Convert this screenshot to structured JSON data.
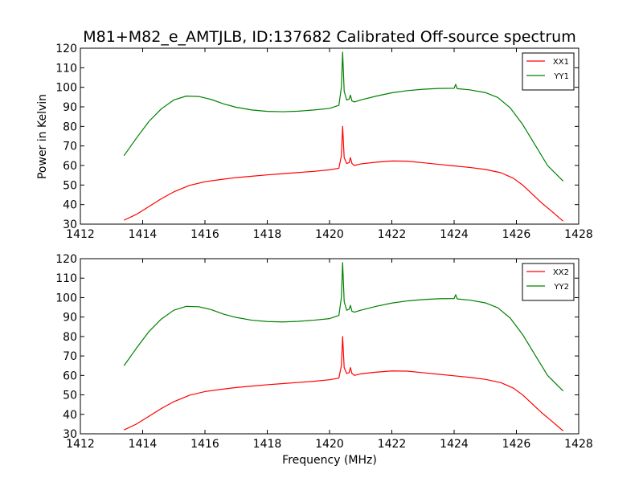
{
  "figure": {
    "title": "M81+M82_e_AMTJLB, ID:137682 Calibrated Off-source spectrum",
    "xlabel": "Frequency (MHz)",
    "ylabel": "Power in Kelvin"
  },
  "chart_data": [
    {
      "type": "line",
      "title": "M81+M82_e_AMTJLB, ID:137682 Calibrated Off-source spectrum",
      "xlabel": "",
      "ylabel": "Power in Kelvin",
      "xlim": [
        1412,
        1428
      ],
      "ylim": [
        30,
        120
      ],
      "xticks": [
        1412,
        1414,
        1416,
        1418,
        1420,
        1422,
        1424,
        1426,
        1428
      ],
      "yticks": [
        30,
        40,
        50,
        60,
        70,
        80,
        90,
        100,
        110,
        120
      ],
      "grid": false,
      "legend_position": "top-right",
      "series": [
        {
          "name": "XX1",
          "color": "#ff0000",
          "x": [
            1413.4,
            1413.8,
            1414.2,
            1414.6,
            1415.0,
            1415.5,
            1416.0,
            1416.5,
            1417.0,
            1417.5,
            1418.0,
            1418.5,
            1419.0,
            1419.5,
            1420.0,
            1420.3,
            1420.38,
            1420.42,
            1420.47,
            1420.55,
            1420.63,
            1420.67,
            1420.72,
            1420.8,
            1421.0,
            1421.5,
            1422.0,
            1422.5,
            1423.0,
            1423.5,
            1424.0,
            1424.5,
            1425.0,
            1425.5,
            1425.9,
            1426.2,
            1426.5,
            1426.8,
            1427.1,
            1427.5
          ],
          "y": [
            32,
            35,
            39,
            43,
            46.5,
            49.8,
            51.7,
            52.8,
            53.8,
            54.5,
            55.2,
            55.8,
            56.4,
            57.0,
            57.8,
            58.6,
            65,
            80,
            64,
            61,
            61.5,
            64,
            61,
            60,
            60.8,
            61.7,
            62.3,
            62.2,
            61.4,
            60.6,
            59.8,
            59.0,
            58.0,
            56.3,
            53.5,
            50,
            45.5,
            41,
            37,
            31.5
          ]
        },
        {
          "name": "YY1",
          "color": "#008000",
          "x": [
            1413.4,
            1413.8,
            1414.2,
            1414.6,
            1415.0,
            1415.4,
            1415.8,
            1416.2,
            1416.6,
            1417.0,
            1417.5,
            1418.0,
            1418.5,
            1419.0,
            1419.5,
            1420.0,
            1420.3,
            1420.38,
            1420.42,
            1420.47,
            1420.55,
            1420.63,
            1420.67,
            1420.72,
            1420.8,
            1421.0,
            1421.5,
            1422.0,
            1422.5,
            1423.0,
            1423.5,
            1424.0,
            1424.05,
            1424.1,
            1424.5,
            1425.0,
            1425.4,
            1425.8,
            1426.2,
            1426.6,
            1427.0,
            1427.5
          ],
          "y": [
            65,
            74,
            82.5,
            89,
            93.5,
            95.5,
            95.3,
            93.8,
            91.5,
            89.8,
            88.4,
            87.7,
            87.5,
            87.8,
            88.4,
            89.2,
            90.8,
            100,
            118,
            98,
            93.5,
            94,
            96,
            93,
            92.5,
            93.5,
            95.5,
            97.2,
            98.3,
            99.0,
            99.4,
            99.5,
            101.5,
            99.3,
            98.7,
            97.3,
            94.8,
            89.5,
            81,
            70.5,
            60,
            52
          ]
        }
      ]
    },
    {
      "type": "line",
      "title": "",
      "xlabel": "Frequency (MHz)",
      "ylabel": "",
      "xlim": [
        1412,
        1428
      ],
      "ylim": [
        30,
        120
      ],
      "xticks": [
        1412,
        1414,
        1416,
        1418,
        1420,
        1422,
        1424,
        1426,
        1428
      ],
      "yticks": [
        30,
        40,
        50,
        60,
        70,
        80,
        90,
        100,
        110,
        120
      ],
      "grid": false,
      "legend_position": "top-right",
      "series": [
        {
          "name": "XX2",
          "color": "#ff0000",
          "x": [
            1413.4,
            1413.8,
            1414.2,
            1414.6,
            1415.0,
            1415.5,
            1416.0,
            1416.5,
            1417.0,
            1417.5,
            1418.0,
            1418.5,
            1419.0,
            1419.5,
            1420.0,
            1420.3,
            1420.38,
            1420.42,
            1420.47,
            1420.55,
            1420.63,
            1420.67,
            1420.72,
            1420.8,
            1421.0,
            1421.5,
            1422.0,
            1422.5,
            1423.0,
            1423.5,
            1424.0,
            1424.5,
            1425.0,
            1425.5,
            1425.9,
            1426.2,
            1426.5,
            1426.8,
            1427.1,
            1427.5
          ],
          "y": [
            32,
            35,
            39,
            43,
            46.5,
            49.8,
            51.7,
            52.8,
            53.8,
            54.5,
            55.2,
            55.8,
            56.4,
            57.0,
            57.8,
            58.6,
            65,
            80,
            64,
            61,
            61.5,
            64,
            61,
            60,
            60.8,
            61.7,
            62.3,
            62.2,
            61.4,
            60.6,
            59.8,
            59.0,
            58.0,
            56.3,
            53.5,
            50,
            45.5,
            41,
            37,
            31.5
          ]
        },
        {
          "name": "YY2",
          "color": "#008000",
          "x": [
            1413.4,
            1413.8,
            1414.2,
            1414.6,
            1415.0,
            1415.4,
            1415.8,
            1416.2,
            1416.6,
            1417.0,
            1417.5,
            1418.0,
            1418.5,
            1419.0,
            1419.5,
            1420.0,
            1420.3,
            1420.38,
            1420.42,
            1420.47,
            1420.55,
            1420.63,
            1420.67,
            1420.72,
            1420.8,
            1421.0,
            1421.5,
            1422.0,
            1422.5,
            1423.0,
            1423.5,
            1424.0,
            1424.05,
            1424.1,
            1424.5,
            1425.0,
            1425.4,
            1425.8,
            1426.2,
            1426.6,
            1427.0,
            1427.5
          ],
          "y": [
            65,
            74,
            82.5,
            89,
            93.5,
            95.5,
            95.3,
            93.8,
            91.5,
            89.8,
            88.4,
            87.7,
            87.5,
            87.8,
            88.4,
            89.2,
            90.8,
            100,
            118,
            98,
            93.5,
            94,
            96,
            93,
            92.5,
            93.5,
            95.5,
            97.2,
            98.3,
            99.0,
            99.4,
            99.5,
            101.5,
            99.3,
            98.7,
            97.3,
            94.8,
            89.5,
            81,
            70.5,
            60,
            52
          ]
        }
      ]
    }
  ]
}
